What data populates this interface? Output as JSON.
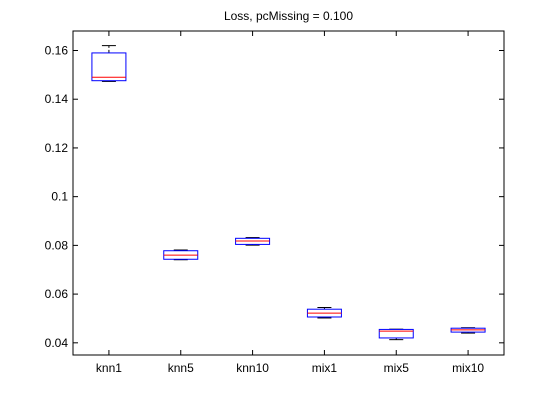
{
  "chart_data": {
    "type": "box",
    "title": "Loss, pcMissing = 0.100",
    "xlabel": "",
    "ylabel": "",
    "ylim": [
      0.035,
      0.168
    ],
    "yticks": [
      0.04,
      0.06,
      0.08,
      0.1,
      0.12,
      0.14,
      0.16
    ],
    "ytick_labels": [
      "0.04",
      "0.06",
      "0.08",
      "0.1",
      "0.12",
      "0.14",
      "0.16"
    ],
    "categories": [
      "knn1",
      "knn5",
      "knn10",
      "mix1",
      "mix5",
      "mix10"
    ],
    "boxes": [
      {
        "label": "knn1",
        "whisker_low": 0.1473,
        "q1": 0.1476,
        "median": 0.149,
        "q3": 0.159,
        "whisker_high": 0.162
      },
      {
        "label": "knn5",
        "whisker_low": 0.0741,
        "q1": 0.0743,
        "median": 0.076,
        "q3": 0.0778,
        "whisker_high": 0.0781
      },
      {
        "label": "knn10",
        "whisker_low": 0.0801,
        "q1": 0.0804,
        "median": 0.0818,
        "q3": 0.0829,
        "whisker_high": 0.0832
      },
      {
        "label": "mix1",
        "whisker_low": 0.0502,
        "q1": 0.0506,
        "median": 0.0522,
        "q3": 0.0538,
        "whisker_high": 0.0545
      },
      {
        "label": "mix5",
        "whisker_low": 0.0413,
        "q1": 0.042,
        "median": 0.0448,
        "q3": 0.0455,
        "whisker_high": 0.0456
      },
      {
        "label": "mix10",
        "whisker_low": 0.044,
        "q1": 0.0444,
        "median": 0.0453,
        "q3": 0.046,
        "whisker_high": 0.0462
      }
    ],
    "colors": {
      "box": "#0000ff",
      "median": "#ff0000",
      "whisker": "#000000",
      "axes": "#000000"
    },
    "grid": false,
    "legend": "none"
  }
}
